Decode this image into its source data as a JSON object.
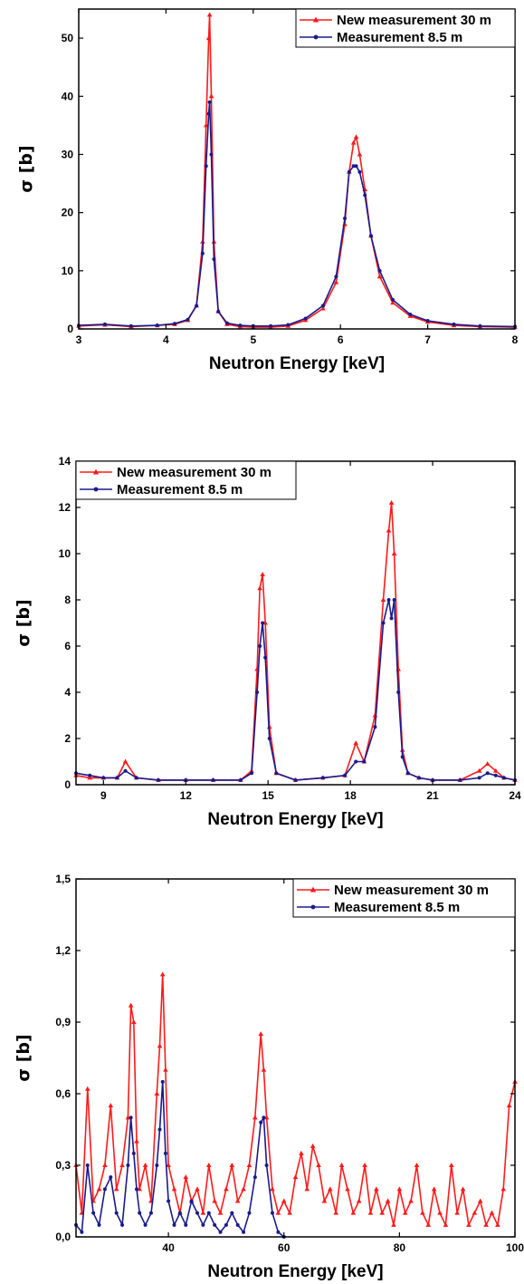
{
  "colors": {
    "series_new": "#ff1a1a",
    "series_old": "#1a1a8c",
    "axis": "#000000"
  },
  "chart_data": [
    {
      "type": "line",
      "xlabel": "Neutron Energy [keV]",
      "ylabel": "σ [b]",
      "xlim": [
        3,
        8
      ],
      "ylim": [
        0,
        55
      ],
      "xticks": [
        "3",
        "4",
        "5",
        "6",
        "7",
        "8"
      ],
      "yticks": [
        "0",
        "10",
        "20",
        "30",
        "40",
        "50"
      ],
      "legend_position": "top-right",
      "series": [
        {
          "name": "New measurement 30 m",
          "color": "#ff1a1a",
          "marker": "triangle",
          "x": [
            3.0,
            3.3,
            3.6,
            3.9,
            4.1,
            4.25,
            4.35,
            4.42,
            4.46,
            4.49,
            4.5,
            4.52,
            4.55,
            4.6,
            4.7,
            4.85,
            5.0,
            5.2,
            5.4,
            5.6,
            5.8,
            5.95,
            6.05,
            6.1,
            6.15,
            6.18,
            6.22,
            6.28,
            6.35,
            6.45,
            6.6,
            6.8,
            7.0,
            7.3,
            7.6,
            8.0
          ],
          "y": [
            0.5,
            0.7,
            0.4,
            0.6,
            0.8,
            1.5,
            4,
            15,
            35,
            50,
            54,
            40,
            15,
            3,
            0.8,
            0.4,
            0.3,
            0.3,
            0.5,
            1.5,
            3.5,
            8,
            18,
            27,
            32,
            33,
            30,
            24,
            16,
            9,
            4.5,
            2.2,
            1.2,
            0.6,
            0.4,
            0.3
          ]
        },
        {
          "name": "Measurement 8.5 m",
          "color": "#1a1a8c",
          "marker": "circle",
          "x": [
            3.0,
            3.3,
            3.6,
            3.9,
            4.1,
            4.25,
            4.35,
            4.42,
            4.46,
            4.49,
            4.5,
            4.52,
            4.55,
            4.6,
            4.7,
            4.85,
            5.0,
            5.2,
            5.4,
            5.6,
            5.8,
            5.95,
            6.05,
            6.1,
            6.15,
            6.18,
            6.22,
            6.28,
            6.35,
            6.45,
            6.6,
            6.8,
            7.0,
            7.3,
            7.6,
            8.0
          ],
          "y": [
            0.6,
            0.8,
            0.5,
            0.6,
            0.9,
            1.6,
            4,
            13,
            28,
            37,
            39,
            30,
            12,
            3,
            1,
            0.6,
            0.5,
            0.5,
            0.7,
            1.8,
            4,
            9,
            19,
            27,
            28,
            28,
            27,
            23,
            16,
            10,
            5,
            2.5,
            1.4,
            0.8,
            0.5,
            0.4
          ]
        }
      ]
    },
    {
      "type": "line",
      "xlabel": "Neutron Energy [keV]",
      "ylabel": "σ [b]",
      "xlim": [
        8,
        24
      ],
      "ylim": [
        0,
        14
      ],
      "xticks": [
        "9",
        "12",
        "15",
        "18",
        "21",
        "24"
      ],
      "yticks": [
        "0",
        "2",
        "4",
        "6",
        "8",
        "10",
        "12",
        "14"
      ],
      "legend_position": "top-left",
      "series": [
        {
          "name": "New measurement 30 m",
          "color": "#ff1a1a",
          "marker": "triangle",
          "x": [
            8.0,
            8.5,
            9.0,
            9.5,
            9.8,
            10.2,
            11.0,
            12.0,
            13.0,
            14.0,
            14.4,
            14.6,
            14.7,
            14.8,
            14.9,
            15.05,
            15.3,
            16.0,
            17.0,
            17.8,
            18.2,
            18.5,
            18.9,
            19.2,
            19.4,
            19.5,
            19.6,
            19.75,
            19.9,
            20.1,
            20.5,
            21.0,
            22.0,
            22.7,
            23.0,
            23.3,
            23.6,
            24.0
          ],
          "y": [
            0.4,
            0.3,
            0.3,
            0.3,
            1.0,
            0.3,
            0.2,
            0.2,
            0.2,
            0.2,
            0.6,
            5.0,
            8.5,
            9.1,
            7.0,
            2.5,
            0.5,
            0.2,
            0.3,
            0.4,
            1.8,
            1.0,
            3.0,
            8.0,
            11.0,
            12.2,
            10.0,
            5.0,
            1.5,
            0.5,
            0.3,
            0.2,
            0.2,
            0.6,
            0.9,
            0.6,
            0.3,
            0.2
          ]
        },
        {
          "name": "Measurement 8.5 m",
          "color": "#1a1a8c",
          "marker": "circle",
          "x": [
            8.0,
            8.5,
            9.0,
            9.5,
            9.8,
            10.2,
            11.0,
            12.0,
            13.0,
            14.0,
            14.4,
            14.6,
            14.7,
            14.8,
            14.9,
            15.05,
            15.3,
            16.0,
            17.0,
            17.8,
            18.2,
            18.5,
            18.9,
            19.2,
            19.4,
            19.5,
            19.6,
            19.75,
            19.9,
            20.1,
            20.5,
            21.0,
            22.0,
            22.7,
            23.0,
            23.3,
            23.6,
            24.0
          ],
          "y": [
            0.5,
            0.4,
            0.3,
            0.3,
            0.6,
            0.3,
            0.2,
            0.2,
            0.2,
            0.2,
            0.5,
            4.0,
            6.0,
            7.0,
            5.5,
            2.0,
            0.5,
            0.2,
            0.3,
            0.4,
            1.0,
            1.0,
            2.5,
            7.0,
            8.0,
            7.2,
            8.0,
            4.0,
            1.2,
            0.5,
            0.3,
            0.2,
            0.2,
            0.3,
            0.5,
            0.4,
            0.3,
            0.2
          ]
        }
      ]
    },
    {
      "type": "line",
      "xlabel": "Neutron Energy [keV]",
      "ylabel": "σ [b]",
      "xlim": [
        24,
        100
      ],
      "ylim": [
        0,
        1.5
      ],
      "xticks": [
        "40",
        "60",
        "80",
        "100"
      ],
      "yticks": [
        "0,0",
        "0,3",
        "0,6",
        "0,9",
        "1,2",
        "1,5"
      ],
      "legend_position": "top-right",
      "series": [
        {
          "name": "New measurement 30 m",
          "color": "#ff1a1a",
          "marker": "triangle",
          "x": [
            24,
            25,
            26,
            27,
            28,
            29,
            30,
            31,
            32,
            33,
            33.5,
            34,
            34.5,
            35,
            36,
            37,
            38,
            38.5,
            39,
            39.5,
            40,
            41,
            42,
            43,
            44,
            45,
            46,
            47,
            48,
            49,
            50,
            51,
            52,
            53,
            54,
            55,
            56,
            56.5,
            57,
            58,
            59,
            60,
            61,
            62,
            63,
            64,
            65,
            66,
            67,
            68,
            69,
            70,
            71,
            72,
            73,
            74,
            75,
            76,
            77,
            78,
            79,
            80,
            81,
            82,
            83,
            84,
            85,
            86,
            87,
            88,
            89,
            90,
            91,
            92,
            93,
            94,
            95,
            96,
            97,
            98,
            99,
            100
          ],
          "y": [
            0.3,
            0.1,
            0.62,
            0.15,
            0.2,
            0.3,
            0.55,
            0.2,
            0.3,
            0.5,
            0.97,
            0.9,
            0.4,
            0.2,
            0.3,
            0.15,
            0.6,
            0.8,
            1.1,
            0.7,
            0.3,
            0.2,
            0.1,
            0.25,
            0.15,
            0.2,
            0.1,
            0.3,
            0.15,
            0.1,
            0.2,
            0.3,
            0.15,
            0.2,
            0.3,
            0.5,
            0.85,
            0.7,
            0.5,
            0.2,
            0.1,
            0.15,
            0.1,
            0.25,
            0.35,
            0.2,
            0.38,
            0.3,
            0.15,
            0.2,
            0.1,
            0.3,
            0.2,
            0.1,
            0.15,
            0.3,
            0.1,
            0.2,
            0.1,
            0.15,
            0.05,
            0.2,
            0.1,
            0.15,
            0.3,
            0.1,
            0.05,
            0.2,
            0.1,
            0.05,
            0.3,
            0.1,
            0.2,
            0.05,
            0.1,
            0.15,
            0.05,
            0.1,
            0.05,
            0.2,
            0.55,
            0.65
          ]
        },
        {
          "name": "Measurement 8.5 m",
          "color": "#1a1a8c",
          "marker": "circle",
          "x": [
            24,
            25,
            26,
            27,
            28,
            29,
            30,
            31,
            32,
            33,
            33.5,
            34,
            34.5,
            35,
            36,
            37,
            38,
            38.5,
            39,
            39.5,
            40,
            41,
            42,
            43,
            44,
            45,
            46,
            47,
            48,
            49,
            50,
            51,
            52,
            53,
            54,
            55,
            56,
            56.5,
            57,
            58,
            59,
            60
          ],
          "y": [
            0.05,
            0.02,
            0.3,
            0.1,
            0.05,
            0.2,
            0.25,
            0.1,
            0.05,
            0.3,
            0.5,
            0.35,
            0.2,
            0.1,
            0.05,
            0.1,
            0.3,
            0.45,
            0.65,
            0.35,
            0.15,
            0.05,
            0.1,
            0.05,
            0.15,
            0.1,
            0.05,
            0.1,
            0.05,
            0.02,
            0.05,
            0.1,
            0.05,
            0.02,
            0.1,
            0.25,
            0.48,
            0.5,
            0.3,
            0.1,
            0.02,
            0.0
          ]
        }
      ]
    }
  ]
}
